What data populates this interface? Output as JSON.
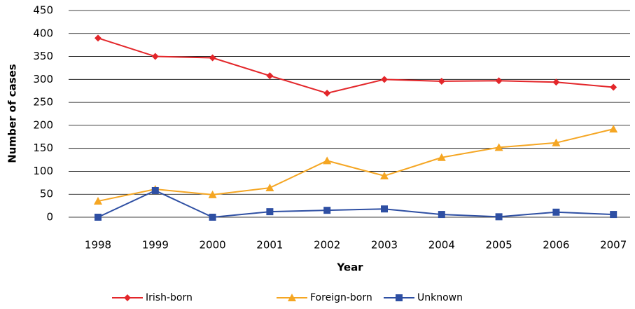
{
  "chart_data": {
    "type": "line",
    "y_label": "Number of cases",
    "x_label": "Year",
    "categories": [
      "1998",
      "1999",
      "2000",
      "2001",
      "2002",
      "2003",
      "2004",
      "2005",
      "2006",
      "2007"
    ],
    "series": [
      {
        "name": "Irish-born",
        "color": "#e3262a",
        "marker": "diamond",
        "values": [
          390,
          350,
          347,
          308,
          270,
          300,
          296,
          297,
          294,
          283
        ]
      },
      {
        "name": "Foreign-born",
        "color": "#f5a623",
        "marker": "triangle",
        "values": [
          35,
          61,
          49,
          64,
          123,
          90,
          130,
          152,
          162,
          192
        ]
      },
      {
        "name": "Unknown",
        "color": "#2e4fa3",
        "marker": "square",
        "values": [
          0,
          58,
          0,
          12,
          15,
          18,
          6,
          1,
          11,
          6
        ]
      }
    ],
    "ylim": [
      0,
      450
    ],
    "yticks": [
      0,
      50,
      100,
      150,
      200,
      250,
      300,
      350,
      400,
      450
    ],
    "grid": true,
    "legend": "bottom"
  }
}
